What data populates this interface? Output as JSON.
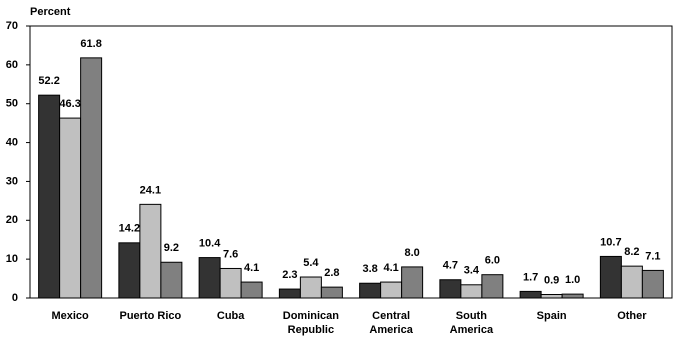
{
  "chart_data": {
    "type": "bar",
    "y_label": "Percent",
    "categories": [
      "Mexico",
      "Puerto Rico",
      "Cuba",
      "Dominican\nRepublic",
      "Central\nAmerica",
      "South\nAmerica",
      "Spain",
      "Other"
    ],
    "series": [
      {
        "color": "#333333",
        "values": [
          52.2,
          14.2,
          10.4,
          2.3,
          3.8,
          4.7,
          1.7,
          10.7
        ],
        "value_labels": [
          "52.2",
          "14.2",
          "10.4",
          "2.3",
          "3.8",
          "4.7",
          "1.7",
          "10.7"
        ]
      },
      {
        "color": "#c0c0c0",
        "values": [
          46.3,
          24.1,
          7.6,
          5.4,
          4.1,
          3.4,
          0.9,
          8.2
        ],
        "value_labels": [
          "46.3",
          "24.1",
          "7.6",
          "5.4",
          "4.1",
          "3.4",
          "0.9",
          "8.2"
        ]
      },
      {
        "color": "#808080",
        "values": [
          61.8,
          9.2,
          4.1,
          2.8,
          8,
          6,
          1,
          7.1
        ],
        "value_labels": [
          "61.8",
          "9.2",
          "4.1",
          "2.8",
          "8.0",
          "6.0",
          "1.0",
          "7.1"
        ]
      }
    ],
    "ylim": [
      0,
      70
    ],
    "yticks": [
      0,
      10,
      20,
      30,
      40,
      50,
      60,
      70
    ],
    "grid": false
  }
}
